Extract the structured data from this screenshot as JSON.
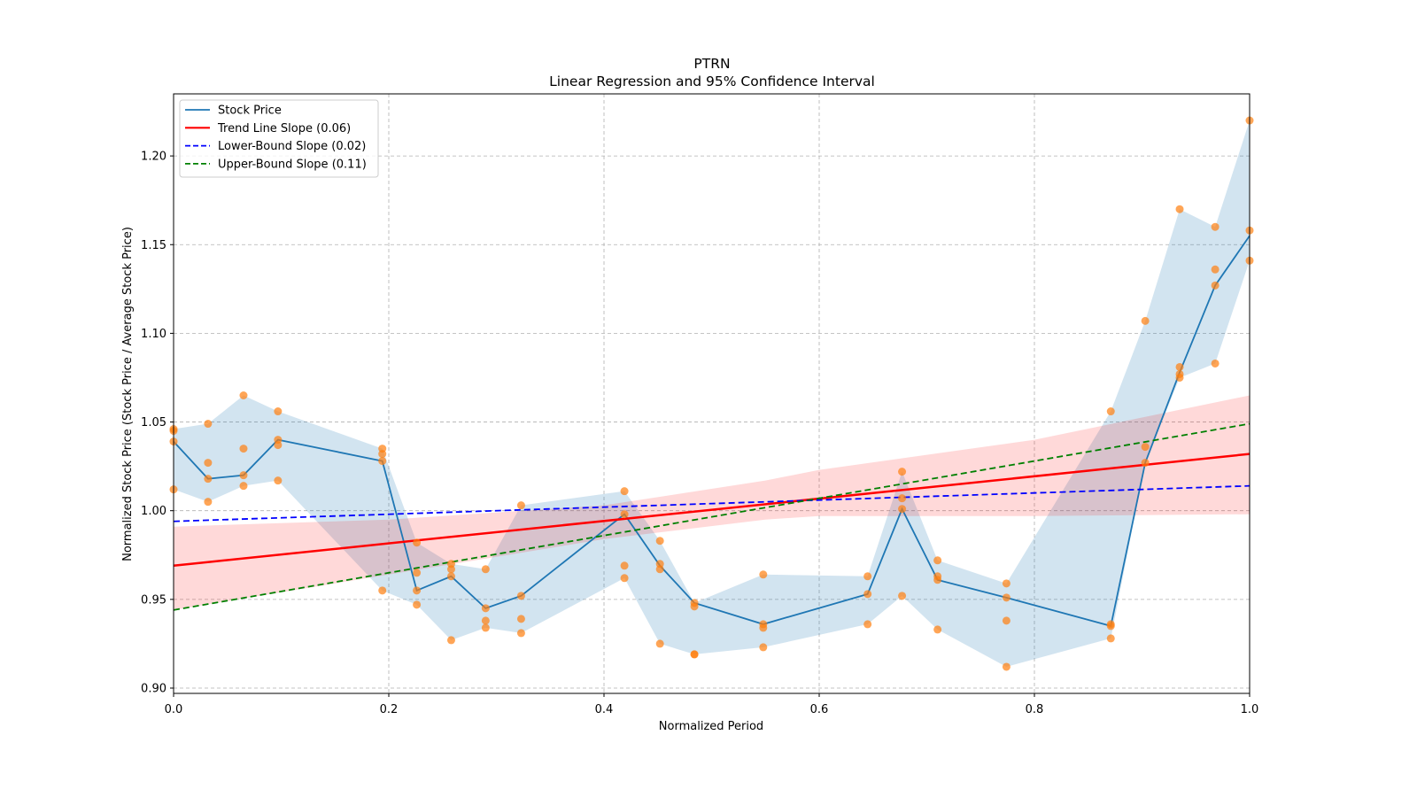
{
  "chart_data": {
    "type": "line",
    "title": "PTRN",
    "subtitle": "Linear Regression and 95% Confidence Interval",
    "xlabel": "Normalized Period",
    "ylabel": "Normalized Stock Price (Stock Price / Average Stock Price)",
    "xlim": [
      0.0,
      1.0
    ],
    "ylim": [
      0.897,
      1.235
    ],
    "grid": true,
    "legend_position": "top-left",
    "x_ticks": [
      "0.0",
      "0.2",
      "0.4",
      "0.6",
      "0.8",
      "1.0"
    ],
    "x_tick_values": [
      0.0,
      0.2,
      0.4,
      0.6,
      0.8,
      1.0
    ],
    "y_ticks": [
      "0.90",
      "0.95",
      "1.00",
      "1.05",
      "1.10",
      "1.15",
      "1.20"
    ],
    "y_tick_values": [
      0.9,
      0.95,
      1.0,
      1.05,
      1.1,
      1.15,
      1.2
    ],
    "colors": {
      "stock": "#1f77b4",
      "stock_band": "#1f77b4",
      "points": "#ff7f0e",
      "trend": "#ff0000",
      "trend_band": "#ff0000",
      "lower": "#0000ff",
      "upper": "#008000"
    },
    "legend": [
      {
        "label": "Stock Price",
        "key": "stock",
        "style": "solid"
      },
      {
        "label": "Trend Line Slope (0.06)",
        "key": "trend",
        "style": "solid"
      },
      {
        "label": "Lower-Bound Slope (0.02)",
        "key": "lower",
        "style": "dashed"
      },
      {
        "label": "Upper-Bound Slope (0.11)",
        "key": "upper",
        "style": "dashed"
      }
    ],
    "x": [
      0.0,
      0.032,
      0.065,
      0.097,
      0.194,
      0.226,
      0.258,
      0.29,
      0.323,
      0.419,
      0.452,
      0.484,
      0.548,
      0.645,
      0.677,
      0.71,
      0.774,
      0.871,
      0.903,
      0.935,
      0.968,
      1.0
    ],
    "series": [
      {
        "name": "Stock Price",
        "values": [
          1.039,
          1.018,
          1.02,
          1.04,
          1.028,
          0.955,
          0.963,
          0.945,
          0.952,
          0.998,
          0.969,
          0.948,
          0.936,
          0.953,
          1.001,
          0.961,
          0.951,
          0.935,
          1.027,
          1.078,
          1.127,
          1.155
        ]
      }
    ],
    "stock_band_upper": [
      1.046,
      1.049,
      1.065,
      1.056,
      1.035,
      0.982,
      0.97,
      0.967,
      1.003,
      1.011,
      0.983,
      0.948,
      0.964,
      0.963,
      1.022,
      0.972,
      0.959,
      1.056,
      1.107,
      1.17,
      1.16,
      1.22
    ],
    "stock_band_lower": [
      1.012,
      1.005,
      1.014,
      1.017,
      0.955,
      0.947,
      0.927,
      0.934,
      0.931,
      0.962,
      0.925,
      0.919,
      0.923,
      0.936,
      0.952,
      0.933,
      0.912,
      0.928,
      1.027,
      1.075,
      1.083,
      1.141
    ],
    "scatter_points": [
      [
        0.0,
        1.046
      ],
      [
        0.0,
        1.045
      ],
      [
        0.0,
        1.039
      ],
      [
        0.0,
        1.012
      ],
      [
        0.032,
        1.049
      ],
      [
        0.032,
        1.027
      ],
      [
        0.032,
        1.018
      ],
      [
        0.032,
        1.005
      ],
      [
        0.065,
        1.065
      ],
      [
        0.065,
        1.035
      ],
      [
        0.065,
        1.02
      ],
      [
        0.065,
        1.014
      ],
      [
        0.097,
        1.056
      ],
      [
        0.097,
        1.04
      ],
      [
        0.097,
        1.037
      ],
      [
        0.097,
        1.017
      ],
      [
        0.194,
        1.035
      ],
      [
        0.194,
        1.032
      ],
      [
        0.194,
        1.028
      ],
      [
        0.194,
        0.955
      ],
      [
        0.226,
        0.982
      ],
      [
        0.226,
        0.965
      ],
      [
        0.226,
        0.955
      ],
      [
        0.226,
        0.947
      ],
      [
        0.258,
        0.97
      ],
      [
        0.258,
        0.967
      ],
      [
        0.258,
        0.963
      ],
      [
        0.258,
        0.927
      ],
      [
        0.29,
        0.967
      ],
      [
        0.29,
        0.945
      ],
      [
        0.29,
        0.938
      ],
      [
        0.29,
        0.934
      ],
      [
        0.323,
        1.003
      ],
      [
        0.323,
        0.952
      ],
      [
        0.323,
        0.939
      ],
      [
        0.323,
        0.931
      ],
      [
        0.419,
        1.011
      ],
      [
        0.419,
        0.998
      ],
      [
        0.419,
        0.969
      ],
      [
        0.419,
        0.962
      ],
      [
        0.452,
        0.983
      ],
      [
        0.452,
        0.97
      ],
      [
        0.452,
        0.967
      ],
      [
        0.452,
        0.925
      ],
      [
        0.484,
        0.948
      ],
      [
        0.484,
        0.946
      ],
      [
        0.484,
        0.919
      ],
      [
        0.484,
        0.919
      ],
      [
        0.548,
        0.964
      ],
      [
        0.548,
        0.936
      ],
      [
        0.548,
        0.934
      ],
      [
        0.548,
        0.923
      ],
      [
        0.645,
        0.963
      ],
      [
        0.645,
        0.953
      ],
      [
        0.645,
        0.936
      ],
      [
        0.677,
        1.022
      ],
      [
        0.677,
        1.007
      ],
      [
        0.677,
        1.001
      ],
      [
        0.677,
        0.952
      ],
      [
        0.71,
        0.972
      ],
      [
        0.71,
        0.963
      ],
      [
        0.71,
        0.961
      ],
      [
        0.71,
        0.933
      ],
      [
        0.774,
        0.959
      ],
      [
        0.774,
        0.951
      ],
      [
        0.774,
        0.938
      ],
      [
        0.774,
        0.912
      ],
      [
        0.871,
        1.056
      ],
      [
        0.871,
        0.936
      ],
      [
        0.871,
        0.935
      ],
      [
        0.871,
        0.928
      ],
      [
        0.903,
        1.107
      ],
      [
        0.903,
        1.036
      ],
      [
        0.903,
        1.027
      ],
      [
        0.935,
        1.17
      ],
      [
        0.935,
        1.081
      ],
      [
        0.935,
        1.077
      ],
      [
        0.935,
        1.075
      ],
      [
        0.968,
        1.16
      ],
      [
        0.968,
        1.136
      ],
      [
        0.968,
        1.127
      ],
      [
        0.968,
        1.083
      ],
      [
        1.0,
        1.22
      ],
      [
        1.0,
        1.158
      ],
      [
        1.0,
        1.141
      ]
    ],
    "trend_line": {
      "x": [
        0.0,
        1.0
      ],
      "y": [
        0.969,
        1.032
      ]
    },
    "trend_band": {
      "x": [
        0.0,
        0.2,
        0.4,
        0.55,
        0.6,
        0.8,
        1.0
      ],
      "upper": [
        0.991,
        0.995,
        1.003,
        1.017,
        1.023,
        1.04,
        1.065
      ],
      "lower": [
        0.944,
        0.964,
        0.984,
        0.995,
        0.997,
        0.997,
        0.998
      ]
    },
    "lower_bound_line": {
      "x": [
        0.0,
        1.0
      ],
      "y": [
        0.994,
        1.014
      ]
    },
    "upper_bound_line": {
      "x": [
        0.0,
        1.0
      ],
      "y": [
        0.944,
        1.049
      ]
    }
  }
}
